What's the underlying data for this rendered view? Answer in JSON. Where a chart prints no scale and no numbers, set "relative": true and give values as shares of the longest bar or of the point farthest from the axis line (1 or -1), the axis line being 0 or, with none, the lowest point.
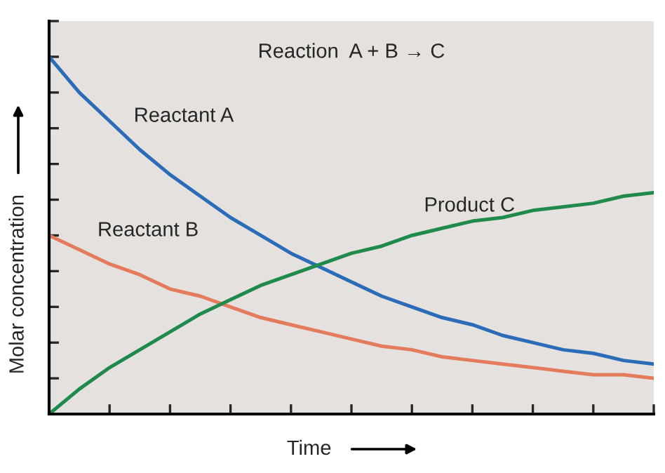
{
  "chart_data": {
    "type": "line",
    "relative": true,
    "xlabel": "Time",
    "ylabel": "Molar concentration",
    "annotations": [
      "Reaction  A + B → C"
    ],
    "grid": false,
    "legend": false,
    "marker": "none",
    "line_style": "solid",
    "categories": [
      null,
      null,
      null,
      null,
      null,
      null,
      null,
      null,
      null,
      null,
      null,
      null,
      null,
      null,
      null,
      null,
      null,
      null,
      null,
      null,
      null
    ],
    "series": [
      {
        "name": "Reactant A",
        "color": "#2b6cb8",
        "values": [
          1.0,
          0.9,
          0.82,
          0.74,
          0.67,
          0.61,
          0.55,
          0.5,
          0.45,
          0.41,
          0.37,
          0.33,
          0.3,
          0.27,
          0.25,
          0.22,
          0.2,
          0.18,
          0.17,
          0.15,
          0.14
        ]
      },
      {
        "name": "Reactant B",
        "color": "#e47b5c",
        "values": [
          0.5,
          0.46,
          0.42,
          0.39,
          0.35,
          0.33,
          0.3,
          0.27,
          0.25,
          0.23,
          0.21,
          0.19,
          0.18,
          0.16,
          0.15,
          0.14,
          0.13,
          0.12,
          0.11,
          0.11,
          0.1
        ]
      },
      {
        "name": "Product C",
        "color": "#1f8a4c",
        "values": [
          0.0,
          0.07,
          0.13,
          0.18,
          0.23,
          0.28,
          0.32,
          0.36,
          0.39,
          0.42,
          0.45,
          0.47,
          0.5,
          0.52,
          0.54,
          0.55,
          0.57,
          0.58,
          0.59,
          0.61,
          0.62
        ]
      }
    ]
  }
}
